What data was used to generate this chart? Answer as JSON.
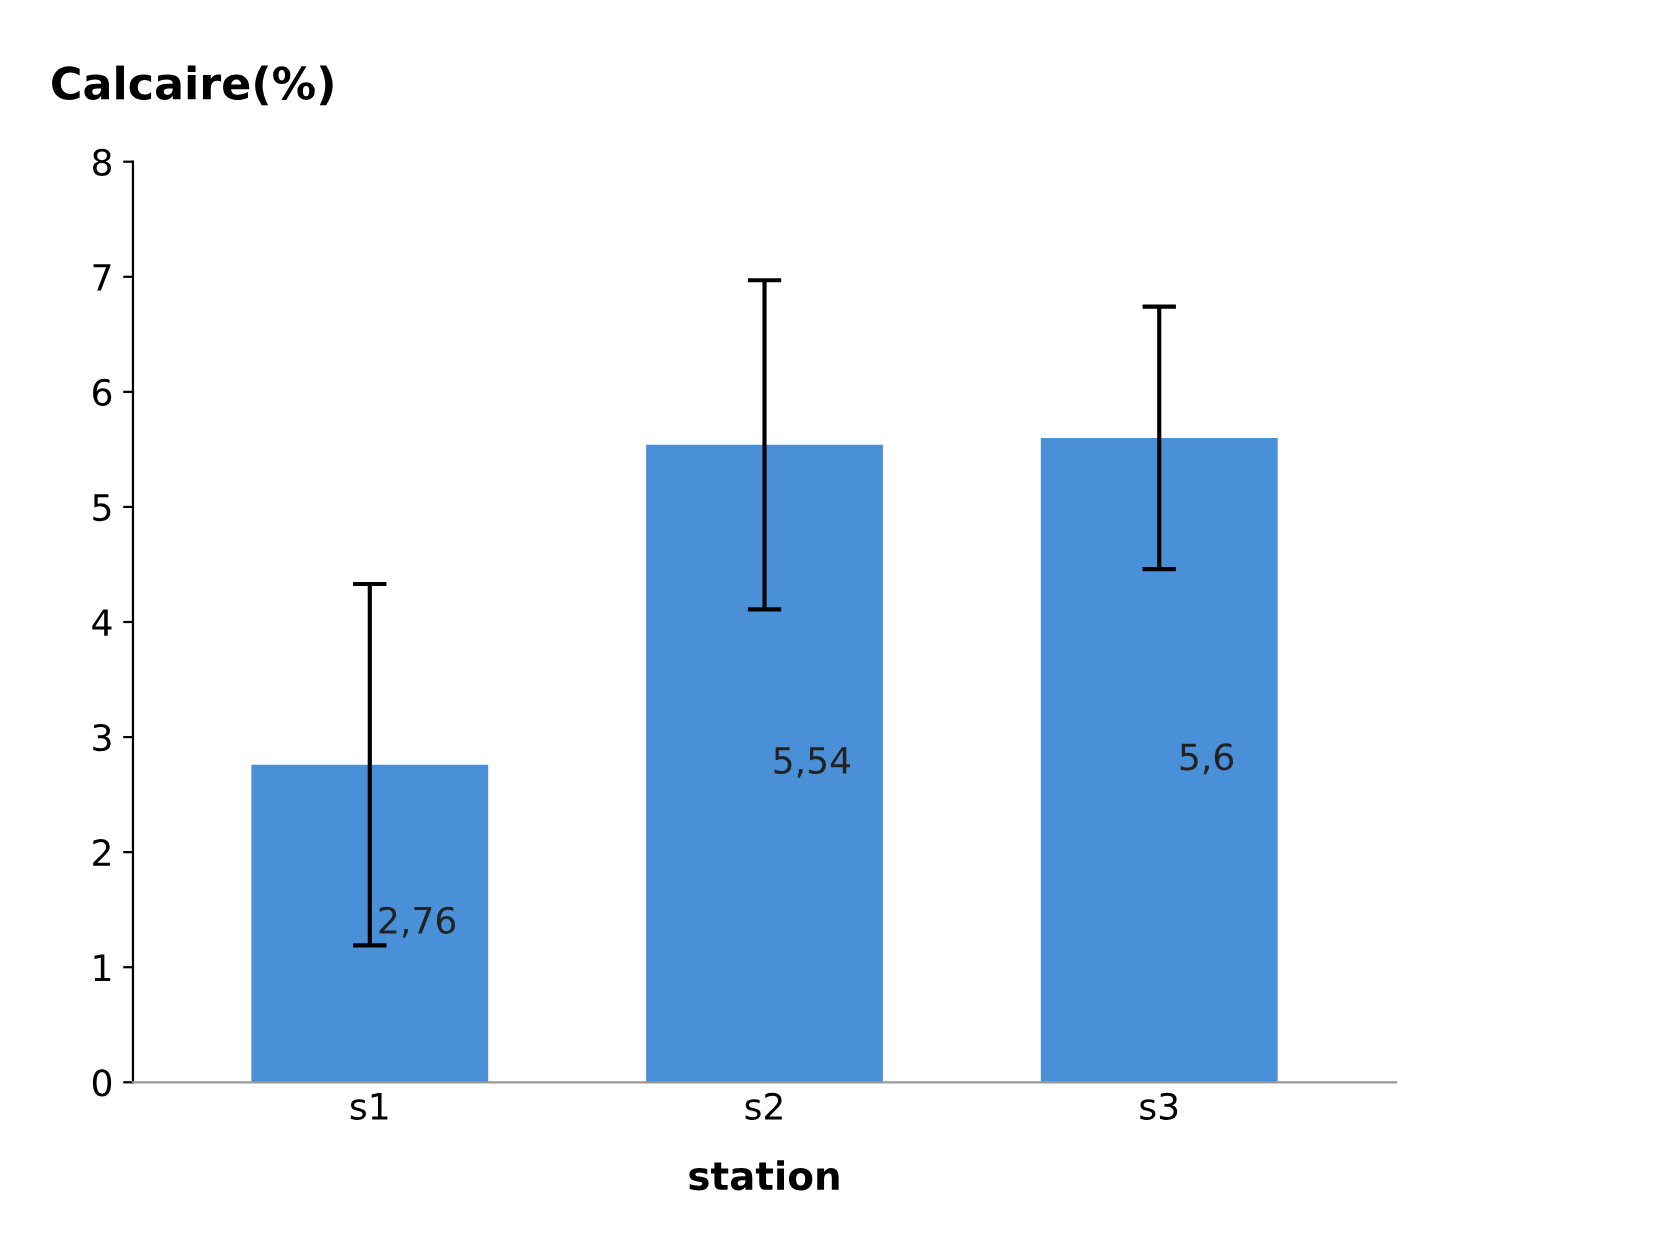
{
  "chart_data": {
    "type": "bar",
    "ylabel": "Calcaire(%)",
    "xlabel": "station",
    "categories": [
      "s1",
      "s2",
      "s3"
    ],
    "values": [
      2.76,
      5.54,
      5.6
    ],
    "errors": [
      1.57,
      1.43,
      1.14
    ],
    "value_labels": [
      "2,76",
      "5,54",
      "5,6"
    ],
    "color": "#4a90d9",
    "ylim": [
      0,
      8
    ],
    "yticks": [
      0,
      1,
      2,
      3,
      4,
      5,
      6,
      7,
      8
    ],
    "grid": false
  }
}
